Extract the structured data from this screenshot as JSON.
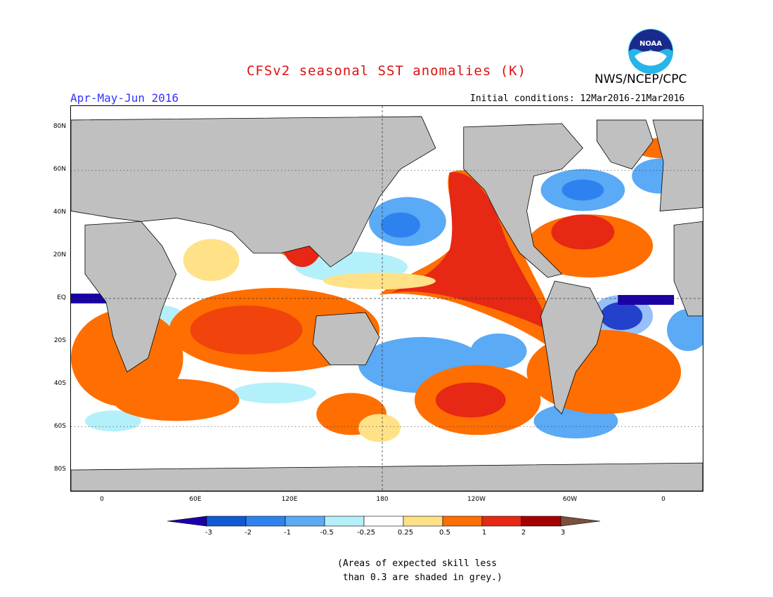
{
  "title": "CFSv2 seasonal SST anomalies (K)",
  "agency": "NWS/NCEP/CPC",
  "logo_text": "NOAA",
  "season": "Apr-May-Jun 2016",
  "initial_conditions": "Initial conditions: 12Mar2016-21Mar2016",
  "note_line1": "(Areas of expected skill less",
  "note_line2": " than 0.3 are shaded in grey.)",
  "lat_labels": [
    "80N",
    "60N",
    "40N",
    "20N",
    "EQ",
    "20S",
    "40S",
    "60S",
    "80S"
  ],
  "lon_labels": [
    "0",
    "60E",
    "120E",
    "180",
    "120W",
    "60W",
    "0"
  ],
  "colorbar": {
    "labels": [
      "-3",
      "-2",
      "-1",
      "-0.5",
      "-0.25",
      "0.25",
      "0.5",
      "1",
      "2",
      "3"
    ],
    "colors": [
      "#1a00a8",
      "#0f5ad2",
      "#2d82f0",
      "#5aaaf5",
      "#b4f0fa",
      "#ffffff",
      "#ffe187",
      "#ff6e00",
      "#e62814",
      "#a50000",
      "#78503c"
    ]
  },
  "colors": {
    "land": "#c0c0c0",
    "title": "#dd1111",
    "season": "#3333ff"
  }
}
